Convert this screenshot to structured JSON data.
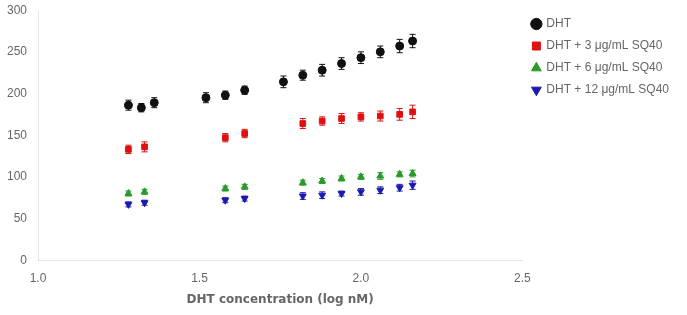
{
  "chart_data": {
    "type": "scatter",
    "xlabel": "DHT concentration (log nM)",
    "xlim": [
      1.0,
      2.5
    ],
    "ylim": [
      0,
      300
    ],
    "xticks": [
      {
        "value": 1.0,
        "label": "1.0"
      },
      1.5,
      {
        "value": 2.0,
        "label": "2.0"
      },
      2.5
    ],
    "yticks": [
      0,
      50,
      100,
      150,
      200,
      250,
      300
    ],
    "grid": false,
    "legend": "right",
    "series": [
      {
        "name": "DHT",
        "color": "#111111",
        "marker": "circle",
        "x": [
          1.28,
          1.32,
          1.36,
          1.52,
          1.58,
          1.64,
          1.76,
          1.82,
          1.88,
          1.94,
          2.0,
          2.06,
          2.12,
          2.16
        ],
        "values": [
          186,
          183,
          189,
          195,
          198,
          204,
          214,
          222,
          228,
          236,
          243,
          250,
          257,
          263
        ],
        "errors": [
          6,
          5,
          6,
          6,
          5,
          5,
          7,
          6,
          7,
          7,
          7,
          7,
          8,
          8
        ]
      },
      {
        "name": "DHT + 3 μg/mL SQ40",
        "color": "#e01010",
        "marker": "square",
        "x": [
          1.28,
          1.33,
          1.58,
          1.64,
          1.82,
          1.88,
          1.94,
          2.0,
          2.06,
          2.12,
          2.16
        ],
        "values": [
          133,
          136,
          147,
          152,
          164,
          167,
          170,
          172,
          173,
          175,
          178
        ],
        "errors": [
          5,
          6,
          5,
          5,
          6,
          5,
          6,
          5,
          6,
          7,
          8
        ]
      },
      {
        "name": "DHT + 6 μg/mL SQ40",
        "color": "#2a9a2a",
        "marker": "triangle_up",
        "x": [
          1.28,
          1.33,
          1.58,
          1.64,
          1.82,
          1.88,
          1.94,
          2.0,
          2.06,
          2.12,
          2.16
        ],
        "values": [
          80,
          82,
          86,
          88,
          93,
          95,
          98,
          100,
          101,
          103,
          104
        ],
        "errors": [
          3,
          3,
          3,
          3,
          3,
          3,
          3,
          3,
          4,
          3,
          4
        ]
      },
      {
        "name": "DHT + 12 μg/mL SQ40",
        "color": "#1a1ab0",
        "marker": "triangle_down",
        "x": [
          1.28,
          1.33,
          1.58,
          1.64,
          1.82,
          1.88,
          1.94,
          2.0,
          2.06,
          2.12,
          2.16
        ],
        "values": [
          67,
          69,
          72,
          74,
          77,
          78,
          80,
          82,
          84,
          87,
          90
        ],
        "errors": [
          3,
          3,
          3,
          3,
          4,
          4,
          3,
          4,
          4,
          4,
          5
        ]
      }
    ]
  }
}
